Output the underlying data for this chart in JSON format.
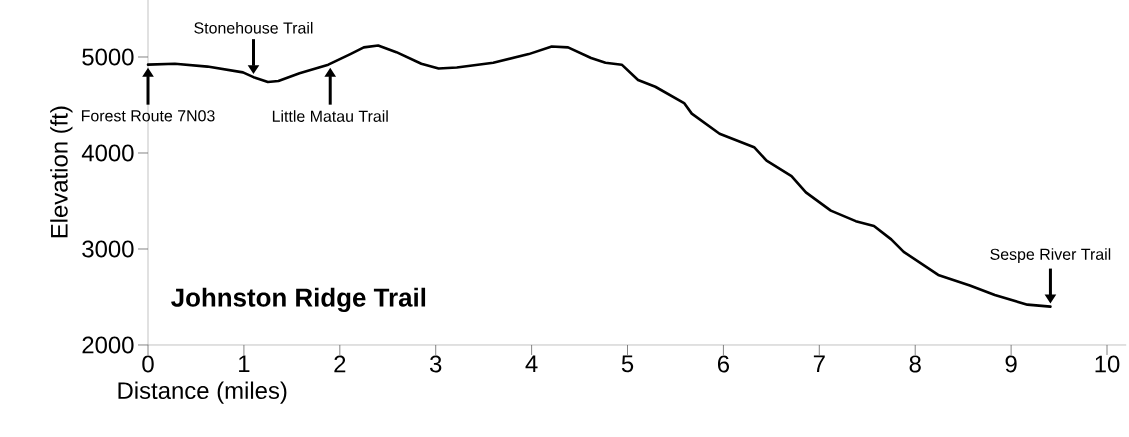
{
  "chart_data": {
    "type": "line",
    "title": "Johnston Ridge Trail",
    "xlabel": "Distance (miles)",
    "ylabel": "Elevation (ft)",
    "xlim": [
      0,
      10.2
    ],
    "ylim": [
      2000,
      5600
    ],
    "xticks": [
      0,
      1,
      2,
      3,
      4,
      5,
      6,
      7,
      8,
      9,
      10
    ],
    "yticks": [
      2000,
      3000,
      4000,
      5000
    ],
    "series": [
      {
        "color": "#000000",
        "x": [
          0,
          0.28,
          0.62,
          0.99,
          1.1,
          1.25,
          1.36,
          1.58,
          1.88,
          2.11,
          2.25,
          2.4,
          2.59,
          2.85,
          3.03,
          3.22,
          3.6,
          3.97,
          4.21,
          4.38,
          4.62,
          4.77,
          4.94,
          5.11,
          5.29,
          5.59,
          5.67,
          5.96,
          6.32,
          6.45,
          6.71,
          6.86,
          7.12,
          7.38,
          7.57,
          7.75,
          7.88,
          8.24,
          8.57,
          8.83,
          9.17,
          9.41
        ],
        "values": [
          4920,
          4930,
          4900,
          4840,
          4790,
          4740,
          4750,
          4830,
          4920,
          5030,
          5100,
          5120,
          5050,
          4930,
          4880,
          4890,
          4940,
          5030,
          5110,
          5100,
          4990,
          4940,
          4920,
          4760,
          4690,
          4520,
          4410,
          4200,
          4060,
          3920,
          3760,
          3590,
          3400,
          3290,
          3240,
          3100,
          2970,
          2730,
          2620,
          2520,
          2420,
          2400
        ]
      }
    ],
    "annotations": [
      {
        "text": "Forest Route 7N03",
        "x": 0,
        "y": 4920
      },
      {
        "text": "Stonehouse Trail",
        "x": 1.1,
        "y": 4790
      },
      {
        "text": "Little Matau Trail",
        "x": 1.9,
        "y": 4920
      },
      {
        "text": "Sespe River Trail",
        "x": 9.41,
        "y": 2400
      }
    ],
    "grid": false,
    "marker": "none",
    "line_style": "solid"
  }
}
